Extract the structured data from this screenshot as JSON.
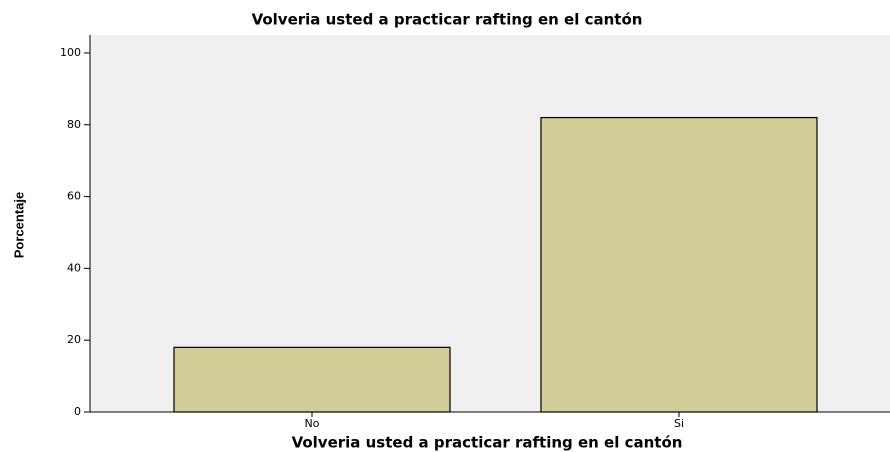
{
  "chart_data": {
    "type": "bar",
    "title": "Volveria usted a practicar rafting en el cantón",
    "x_label": "Volveria usted a practicar rafting en el cantón",
    "y_label": "Porcentaje",
    "categories": [
      "No",
      "Si"
    ],
    "values": [
      18,
      82
    ],
    "color": "#d3ce97",
    "ylim": [
      0,
      105
    ],
    "yticks": [
      0,
      20,
      40,
      60,
      80,
      100
    ],
    "grid": false
  }
}
